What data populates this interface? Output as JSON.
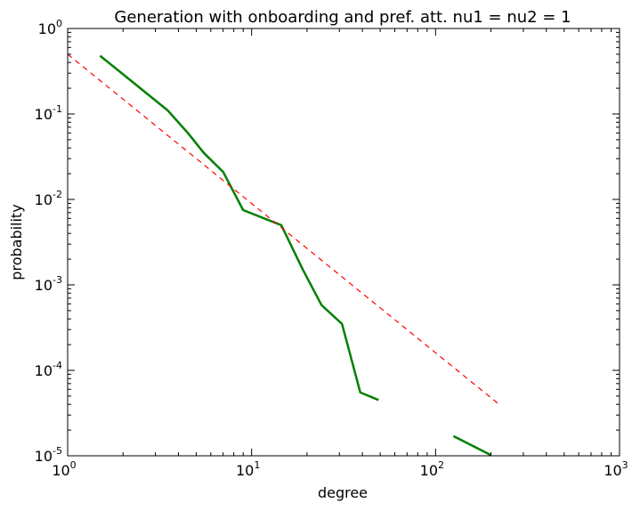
{
  "chart_data": {
    "type": "line",
    "title": "Generation with onboarding and pref. att. nu1 = nu2 = 1",
    "xlabel": "degree",
    "ylabel": "probability",
    "xscale": "log",
    "yscale": "log",
    "xlim": [
      1,
      1000
    ],
    "ylim": [
      1e-05,
      1
    ],
    "grid": false,
    "x_ticks": [
      {
        "base": "10",
        "exp": "0",
        "value": 1
      },
      {
        "base": "10",
        "exp": "1",
        "value": 10
      },
      {
        "base": "10",
        "exp": "2",
        "value": 100
      },
      {
        "base": "10",
        "exp": "3",
        "value": 1000
      }
    ],
    "y_ticks": [
      {
        "base": "10",
        "exp": "0",
        "value": 1
      },
      {
        "base": "10",
        "exp": "-1",
        "value": 0.1
      },
      {
        "base": "10",
        "exp": "-2",
        "value": 0.01
      },
      {
        "base": "10",
        "exp": "-3",
        "value": 0.001
      },
      {
        "base": "10",
        "exp": "-4",
        "value": 0.0001
      },
      {
        "base": "10",
        "exp": "-5",
        "value": 1e-05
      }
    ],
    "series": [
      {
        "style": "solid",
        "color": "#008000",
        "segments": [
          [
            [
              1.5,
              0.48
            ],
            [
              3.5,
              0.11
            ],
            [
              4.5,
              0.06
            ],
            [
              5.5,
              0.035
            ],
            [
              7,
              0.021
            ],
            [
              9,
              0.0075
            ],
            [
              14.5,
              0.005
            ],
            [
              19,
              0.0015
            ],
            [
              24,
              0.00058
            ],
            [
              31,
              0.00035
            ],
            [
              39,
              5.5e-05
            ],
            [
              49,
              4.5e-05
            ]
          ],
          [
            [
              125,
              1.7e-05
            ],
            [
              200,
              1.02e-05
            ]
          ]
        ]
      },
      {
        "style": "dashed",
        "color": "#ff0000",
        "segments": [
          [
            [
              1,
              0.5
            ],
            [
              225,
              3.9e-05
            ]
          ]
        ]
      }
    ]
  }
}
